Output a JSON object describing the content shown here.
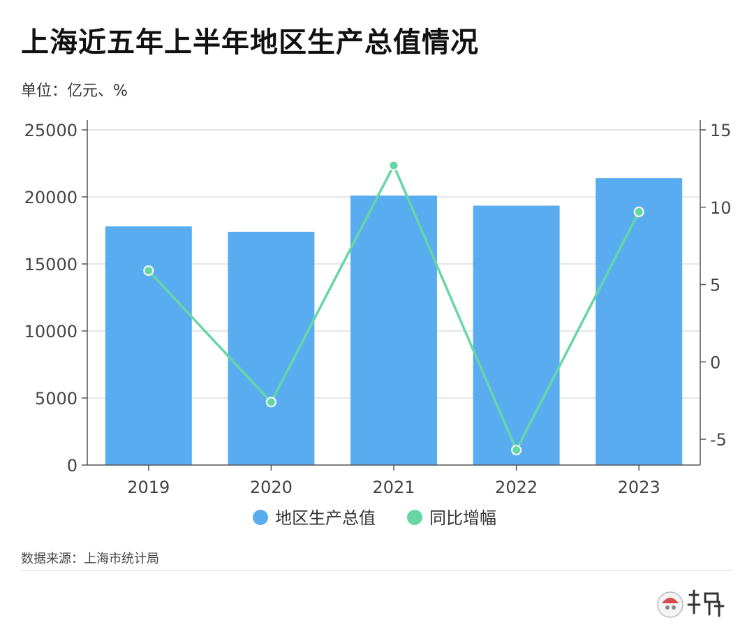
{
  "title": "上海近五年上半年地区生产总值情况",
  "unit_label": "单位：亿元、%",
  "source_label": "数据来源：上海市统计局",
  "colors": {
    "bar": "#5aacf0",
    "line": "#66d6a4",
    "grid": "#dddddd",
    "axis": "#555555"
  },
  "chart_data": {
    "type": "bar",
    "categories": [
      "2019",
      "2020",
      "2021",
      "2022",
      "2023"
    ],
    "series": [
      {
        "name": "地区生产总值",
        "type": "bar",
        "axis": "left",
        "values": [
          17800,
          17400,
          20100,
          19350,
          21400
        ]
      },
      {
        "name": "同比增幅",
        "type": "line",
        "axis": "right",
        "values": [
          5.9,
          -2.6,
          12.7,
          -5.7,
          9.7
        ]
      }
    ],
    "y_left": {
      "ylim": [
        0,
        25000
      ],
      "ticks": [
        0,
        5000,
        10000,
        15000,
        20000,
        25000
      ]
    },
    "y_right": {
      "ylim": [
        -6.67,
        15
      ],
      "ticks": [
        -5,
        0,
        5,
        10,
        15
      ]
    },
    "grid": true,
    "legend_placement": "bottom"
  }
}
